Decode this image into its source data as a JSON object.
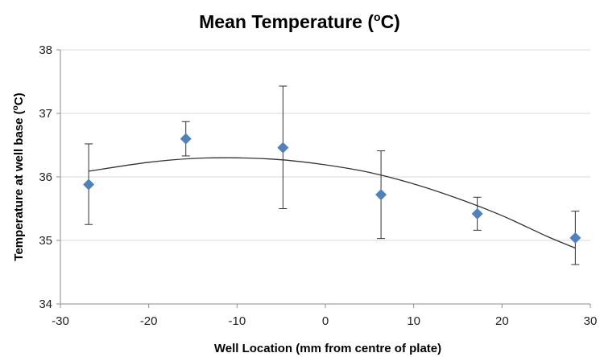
{
  "chart_data": {
    "type": "scatter",
    "title": "Mean Temperature (",
    "title_sup": "o",
    "title_tail": "C)",
    "xlabel": "Well Location (mm from centre of plate)",
    "ylabel": "Temperature at well base (",
    "ylabel_sup": "o",
    "ylabel_tail": "C)",
    "xlim": [
      -30,
      30
    ],
    "ylim": [
      34,
      38
    ],
    "x_ticks": [
      -30,
      -20,
      -10,
      0,
      10,
      20,
      30
    ],
    "y_ticks": [
      34,
      35,
      36,
      37,
      38
    ],
    "grid": "horizontal",
    "marker": "diamond",
    "colors": {
      "marker": "#4f81bd",
      "trendline": "#333333",
      "errorbar": "#333333",
      "gridline": "#d9d9d9",
      "axis": "#8c8c8c"
    },
    "points": [
      {
        "x": -26.8,
        "y": 35.88,
        "y_err_low": 35.25,
        "y_err_high": 36.52
      },
      {
        "x": -15.8,
        "y": 36.6,
        "y_err_low": 36.33,
        "y_err_high": 36.87
      },
      {
        "x": -4.8,
        "y": 36.46,
        "y_err_low": 35.5,
        "y_err_high": 37.43
      },
      {
        "x": 6.3,
        "y": 35.72,
        "y_err_low": 35.03,
        "y_err_high": 36.41
      },
      {
        "x": 17.2,
        "y": 35.42,
        "y_err_low": 35.16,
        "y_err_high": 35.68
      },
      {
        "x": 28.3,
        "y": 35.04,
        "y_err_low": 34.62,
        "y_err_high": 35.46
      }
    ],
    "trendline": {
      "type": "polynomial",
      "points": [
        {
          "x": -26.8,
          "y": 36.09
        },
        {
          "x": -20,
          "y": 36.23
        },
        {
          "x": -15,
          "y": 36.29
        },
        {
          "x": -10,
          "y": 36.3
        },
        {
          "x": -5,
          "y": 36.27
        },
        {
          "x": 0,
          "y": 36.19
        },
        {
          "x": 5,
          "y": 36.07
        },
        {
          "x": 10,
          "y": 35.89
        },
        {
          "x": 15,
          "y": 35.66
        },
        {
          "x": 20,
          "y": 35.39
        },
        {
          "x": 25,
          "y": 35.07
        },
        {
          "x": 28.3,
          "y": 34.88
        }
      ]
    }
  }
}
